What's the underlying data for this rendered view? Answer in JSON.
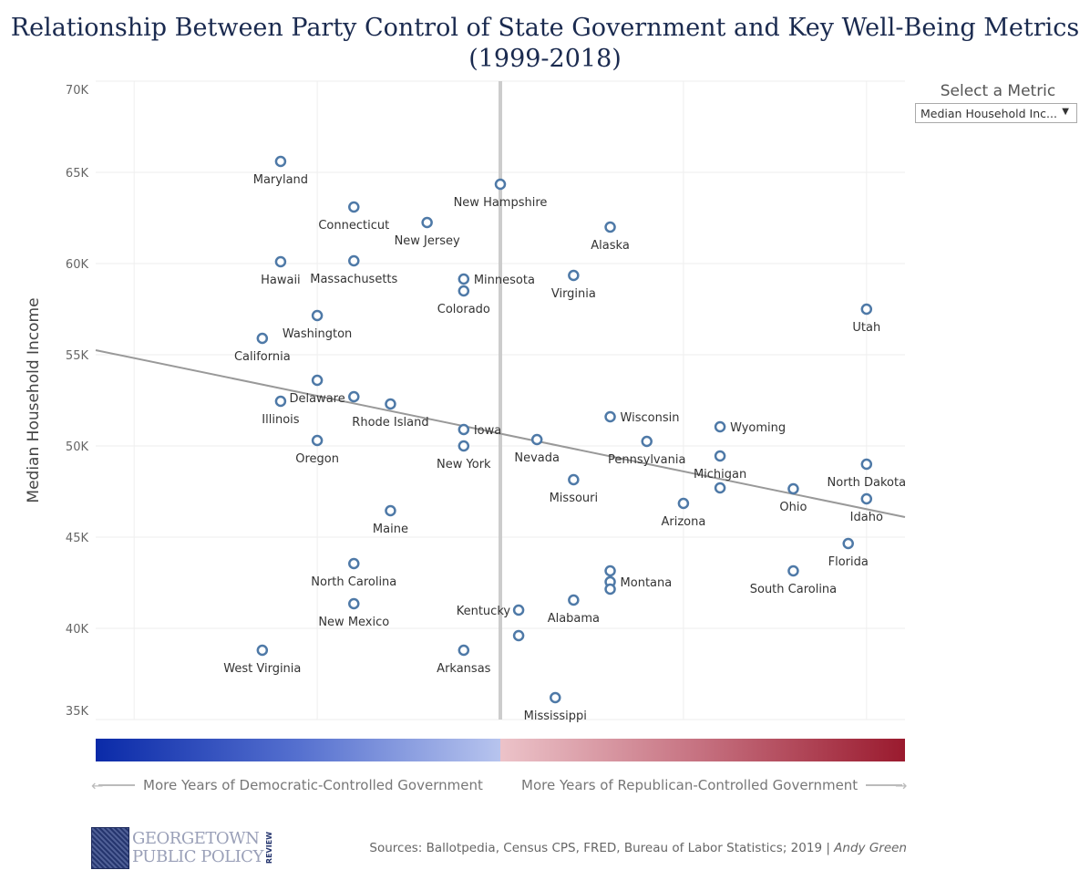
{
  "title_line1": "Relationship Between Party Control of State Government and Key Well-Being Metrics",
  "title_line2": "(1999-2018)",
  "metric_selector": {
    "label": "Select a Metric",
    "value": "Median Household Inc..."
  },
  "legend": {
    "left": "More Years of Democratic-Controlled Government",
    "right": "More Years of Republican-Controlled Government",
    "colors": {
      "democratic": "#0a2aa8",
      "republican": "#9a1a2e"
    }
  },
  "logo": {
    "line1": "GEORGETOWN",
    "line2": "PUBLIC POLICY",
    "side": "REVIEW"
  },
  "sources": {
    "text": "Sources: Ballotpedia, Census CPS, FRED, Bureau of Labor Statistics; 2019 | ",
    "author": "Andy Green"
  },
  "chart_data": {
    "type": "scatter",
    "ylabel": "Median Household Income",
    "xlabel": "",
    "ylim": [
      35,
      70
    ],
    "xlim": [
      -22.1,
      22.1
    ],
    "yticks": [
      "35K",
      "40K",
      "45K",
      "50K",
      "55K",
      "60K",
      "65K",
      "70K"
    ],
    "ytick_values": [
      35,
      40,
      45,
      50,
      55,
      60,
      65,
      70
    ],
    "x_gridlines": [
      -20,
      -10,
      0,
      10,
      20
    ],
    "grid": true,
    "marker_color": "#4e79a7",
    "trendline": {
      "color": "#999999",
      "x": [
        -22.1,
        22.1
      ],
      "y": [
        55.25,
        46.1
      ]
    },
    "points": [
      {
        "label": "Maryland",
        "x": -12,
        "y": 65.6
      },
      {
        "label": "Connecticut",
        "x": -8,
        "y": 63.1
      },
      {
        "label": "New Jersey",
        "x": -4,
        "y": 62.25
      },
      {
        "label": "New Hampshire",
        "x": 0,
        "y": 64.35
      },
      {
        "label": "Alaska",
        "x": 6,
        "y": 62.0
      },
      {
        "label": "Hawaii",
        "x": -12,
        "y": 60.1
      },
      {
        "label": "Massachusetts",
        "x": -8,
        "y": 60.15
      },
      {
        "label": "Minnesota",
        "x": -2,
        "y": 59.15
      },
      {
        "label": "Colorado",
        "x": -2,
        "y": 58.5
      },
      {
        "label": "Virginia",
        "x": 4,
        "y": 59.35
      },
      {
        "label": "Utah",
        "x": 20,
        "y": 57.5
      },
      {
        "label": "Washington",
        "x": -10,
        "y": 57.15
      },
      {
        "label": "California",
        "x": -13,
        "y": 55.9
      },
      {
        "label": "Delaware",
        "x": -10,
        "y": 53.6
      },
      {
        "label": "Illinois",
        "x": -12,
        "y": 52.45
      },
      {
        "label": "",
        "x": -8,
        "y": 52.7
      },
      {
        "label": "Rhode Island",
        "x": -6,
        "y": 52.3
      },
      {
        "label": "Wisconsin",
        "x": 6,
        "y": 51.6
      },
      {
        "label": "Wyoming",
        "x": 12,
        "y": 51.05
      },
      {
        "label": "Iowa",
        "x": -2,
        "y": 50.9
      },
      {
        "label": "Nevada",
        "x": 2,
        "y": 50.35
      },
      {
        "label": "Pennsylvania",
        "x": 8,
        "y": 50.25
      },
      {
        "label": "Oregon",
        "x": -10,
        "y": 50.3
      },
      {
        "label": "New York",
        "x": -2,
        "y": 50.0
      },
      {
        "label": "Michigan",
        "x": 12,
        "y": 49.45
      },
      {
        "label": "North Dakota",
        "x": 20,
        "y": 49.0
      },
      {
        "label": "Missouri",
        "x": 4,
        "y": 48.15
      },
      {
        "label": "",
        "x": 12,
        "y": 47.7
      },
      {
        "label": "Ohio",
        "x": 16,
        "y": 47.65
      },
      {
        "label": "Arizona",
        "x": 10,
        "y": 46.85
      },
      {
        "label": "Idaho",
        "x": 20,
        "y": 47.1
      },
      {
        "label": "Maine",
        "x": -6,
        "y": 46.45
      },
      {
        "label": "Florida",
        "x": 19,
        "y": 44.65
      },
      {
        "label": "North Carolina",
        "x": -8,
        "y": 43.55
      },
      {
        "label": "South Carolina",
        "x": 16,
        "y": 43.15
      },
      {
        "label": "",
        "x": 6,
        "y": 43.15
      },
      {
        "label": "Montana",
        "x": 6,
        "y": 42.55
      },
      {
        "label": "",
        "x": 6,
        "y": 42.15
      },
      {
        "label": "New Mexico",
        "x": -8,
        "y": 41.35
      },
      {
        "label": "Alabama",
        "x": 4,
        "y": 41.55
      },
      {
        "label": "Kentucky",
        "x": 1,
        "y": 41.0
      },
      {
        "label": "",
        "x": 1,
        "y": 39.6
      },
      {
        "label": "West Virginia",
        "x": -13,
        "y": 38.8
      },
      {
        "label": "Arkansas",
        "x": -2,
        "y": 38.8
      },
      {
        "label": "Mississippi",
        "x": 3,
        "y": 36.2
      }
    ]
  }
}
